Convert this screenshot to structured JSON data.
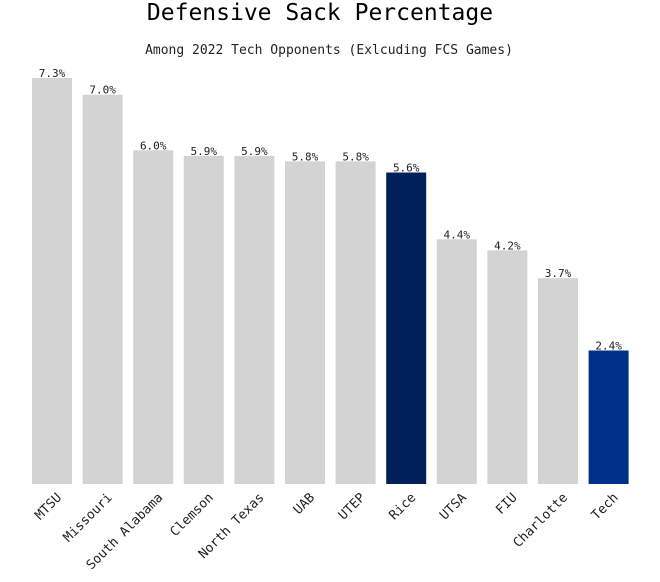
{
  "chart_data": {
    "type": "bar",
    "title": "Defensive Sack Percentage",
    "subtitle": "Among 2022 Tech Opponents (Exlcuding FCS Games)",
    "xlabel": "",
    "ylabel": "",
    "grid": false,
    "categories": [
      "MTSU",
      "Missouri",
      "South Alabama",
      "Clemson",
      "North Texas",
      "UAB",
      "UTEP",
      "Rice",
      "UTSA",
      "FIU",
      "Charlotte",
      "Tech"
    ],
    "values": [
      7.3,
      7.0,
      6.0,
      5.9,
      5.9,
      5.8,
      5.8,
      5.6,
      4.4,
      4.2,
      3.7,
      2.4
    ],
    "value_labels": [
      "7.3%",
      "7.0%",
      "6.0%",
      "5.9%",
      "5.9%",
      "5.8%",
      "5.8%",
      "5.6%",
      "4.4%",
      "4.2%",
      "3.7%",
      "2.4%"
    ],
    "ylim": [
      0,
      7.3
    ],
    "colors": {
      "default": "#d3d3d3",
      "highlights": {
        "Rice": "#00205b",
        "Tech": "#003087"
      }
    }
  }
}
